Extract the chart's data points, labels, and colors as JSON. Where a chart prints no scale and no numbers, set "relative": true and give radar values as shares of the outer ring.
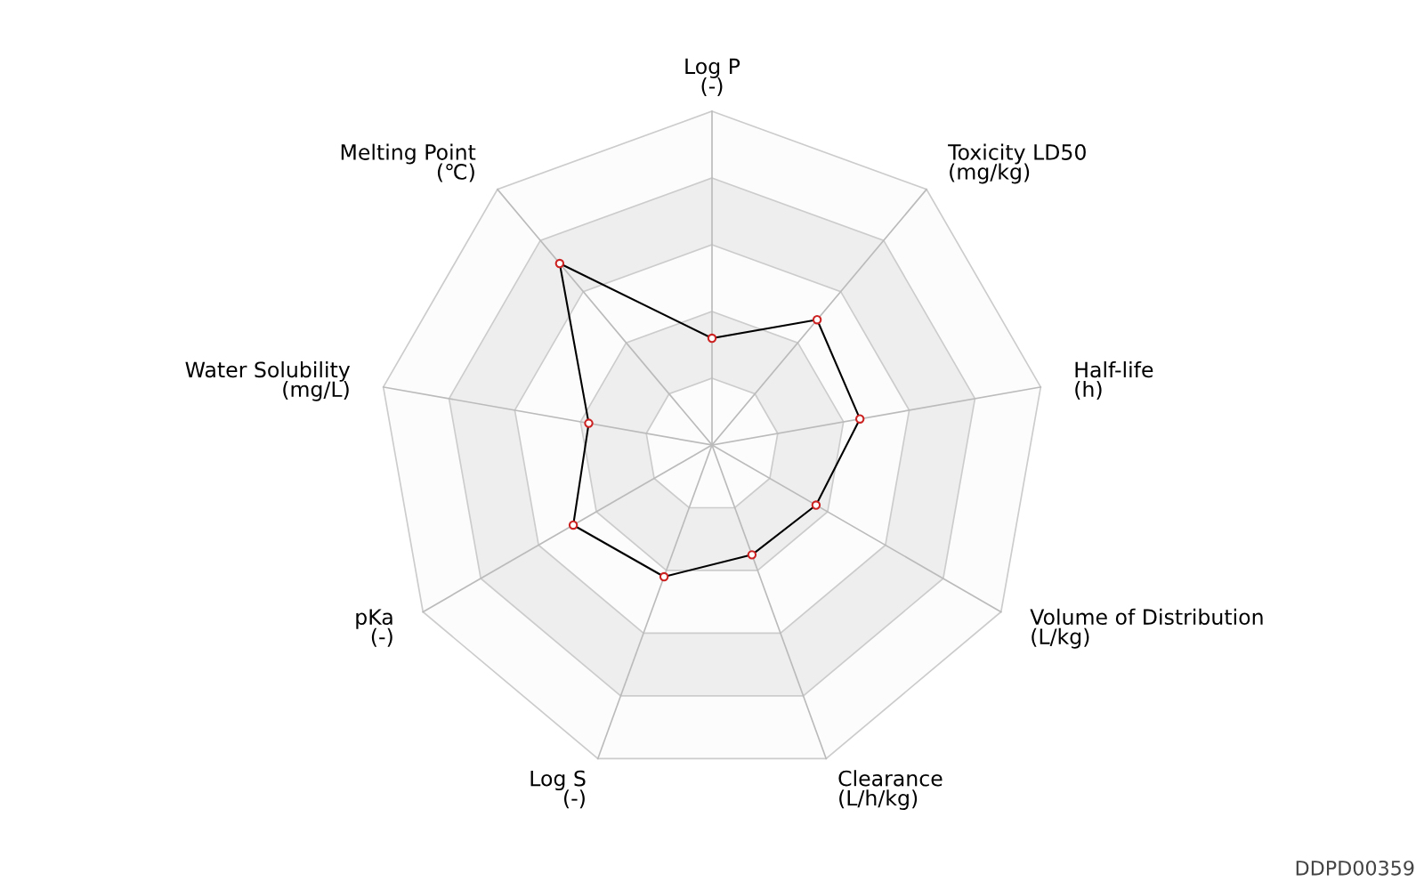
{
  "chart_data": {
    "type": "radar",
    "relative": true,
    "categories": [
      "Log P\n(-)",
      "Toxicity LD50\n(mg/kg)",
      "Half-life\n(h)",
      "Volume of Distribution\n(L/kg)",
      "Clearance\n(L/h/kg)",
      "Log S\n(-)",
      "pKa\n(-)",
      "Water Solubility\n(mg/L)",
      "Melting Point\n(℃)"
    ],
    "series": [
      {
        "color": "#000000",
        "values": [
          0.32,
          0.49,
          0.45,
          0.36,
          0.35,
          0.42,
          0.48,
          0.375,
          0.71
        ]
      }
    ],
    "marker": "circle",
    "grid": true,
    "annotations": [
      "DDPD00359"
    ]
  }
}
